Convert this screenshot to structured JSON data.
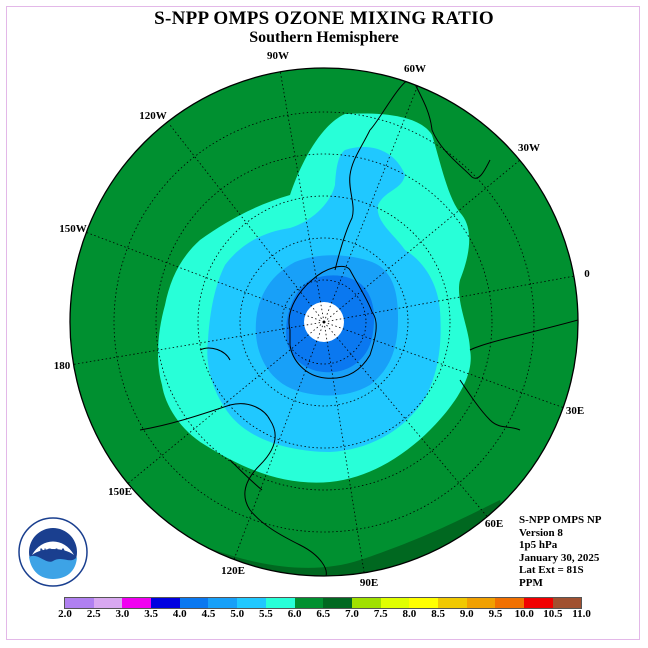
{
  "title": "S-NPP OMPS OZONE MIXING RATIO",
  "subtitle": "Southern Hemisphere",
  "longitude_labels": {
    "l90w": "90W",
    "l60w": "60W",
    "l30w": "30W",
    "l0": "0",
    "l120w": "120W",
    "l150w": "150W",
    "l180": "180",
    "l30e": "30E",
    "l60e": "60E",
    "l90e": "90E",
    "l120e": "120E",
    "l150e": "150E"
  },
  "info": {
    "instrument": "S-NPP OMPS NP",
    "version": "Version 8",
    "level": "1p5 hPa",
    "date": "January 30, 2025",
    "lat_ext": "Lat Ext = 81S",
    "units": "PPM"
  },
  "logo": {
    "text": "NOAA",
    "icon": "noaa-logo-icon"
  },
  "colorbar": {
    "ticks": [
      "2.0",
      "2.5",
      "3.0",
      "3.5",
      "4.0",
      "4.5",
      "5.0",
      "5.5",
      "6.0",
      "6.5",
      "7.0",
      "7.5",
      "8.0",
      "8.5",
      "9.0",
      "9.5",
      "10.0",
      "10.5",
      "11.0"
    ],
    "colors": [
      "#b080f0",
      "#d8a8f0",
      "#f000f0",
      "#0000e0",
      "#0a78f0",
      "#18a0f8",
      "#20c8ff",
      "#28ffd8",
      "#009030",
      "#006820",
      "#a0e000",
      "#e0ff00",
      "#ffff00",
      "#f0c800",
      "#f0a000",
      "#f07000",
      "#f00000",
      "#a05030"
    ]
  }
}
